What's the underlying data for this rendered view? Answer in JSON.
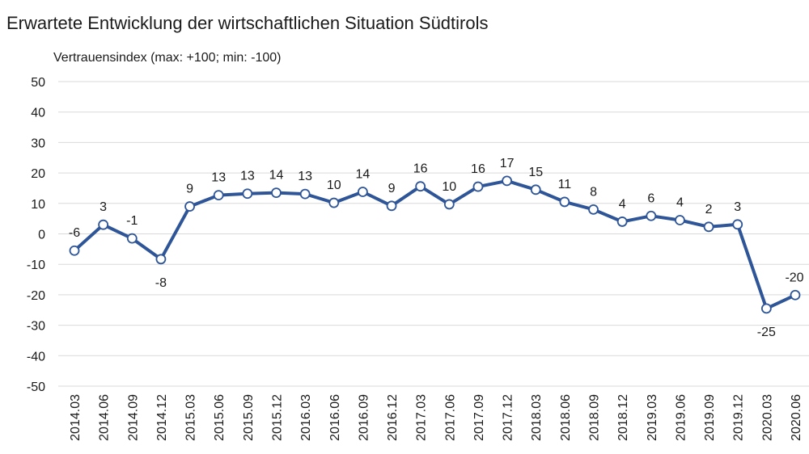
{
  "chart_data": {
    "type": "line",
    "title": "Erwartete Entwicklung der wirtschaftlichen Situation Südtirols",
    "ylabel": "Vertrauensindex (max: +100; min: -100)",
    "xlabel": "",
    "ylim": [
      -50,
      50
    ],
    "yticks": [
      50,
      40,
      30,
      20,
      10,
      0,
      -10,
      -20,
      -30,
      -40,
      -50
    ],
    "grid": true,
    "line_color": "#2E5597",
    "grid_color": "#d9d9d9",
    "categories": [
      "2014.03",
      "2014.06",
      "2014.09",
      "2014.12",
      "2015.03",
      "2015.06",
      "2015.09",
      "2015.12",
      "2016.03",
      "2016.06",
      "2016.09",
      "2016.12",
      "2017.03",
      "2017.06",
      "2017.09",
      "2017.12",
      "2018.03",
      "2018.06",
      "2018.09",
      "2018.12",
      "2019.03",
      "2019.06",
      "2019.09",
      "2019.12",
      "2020.03",
      "2020.06"
    ],
    "values": [
      -5.5,
      3,
      -1.5,
      -8.3,
      9,
      12.7,
      13.2,
      13.5,
      13.1,
      10.2,
      13.8,
      9.2,
      15.6,
      9.7,
      15.5,
      17.4,
      14.5,
      10.5,
      8,
      4,
      5.9,
      4.5,
      2.3,
      3.1,
      -24.5,
      -20.1
    ],
    "labels": [
      "-6",
      "3",
      "-1",
      "-8",
      "9",
      "13",
      "13",
      "14",
      "13",
      "10",
      "14",
      "9",
      "16",
      "10",
      "16",
      "17",
      "15",
      "11",
      "8",
      "4",
      "6",
      "4",
      "2",
      "3",
      "-25",
      "-20"
    ],
    "label_positions": [
      "above",
      "above",
      "above",
      "below",
      "above",
      "above",
      "above",
      "above",
      "above",
      "above",
      "above",
      "above",
      "above",
      "above",
      "above",
      "above",
      "above",
      "above",
      "above",
      "above",
      "above",
      "above",
      "above",
      "above",
      "below",
      "above"
    ]
  }
}
